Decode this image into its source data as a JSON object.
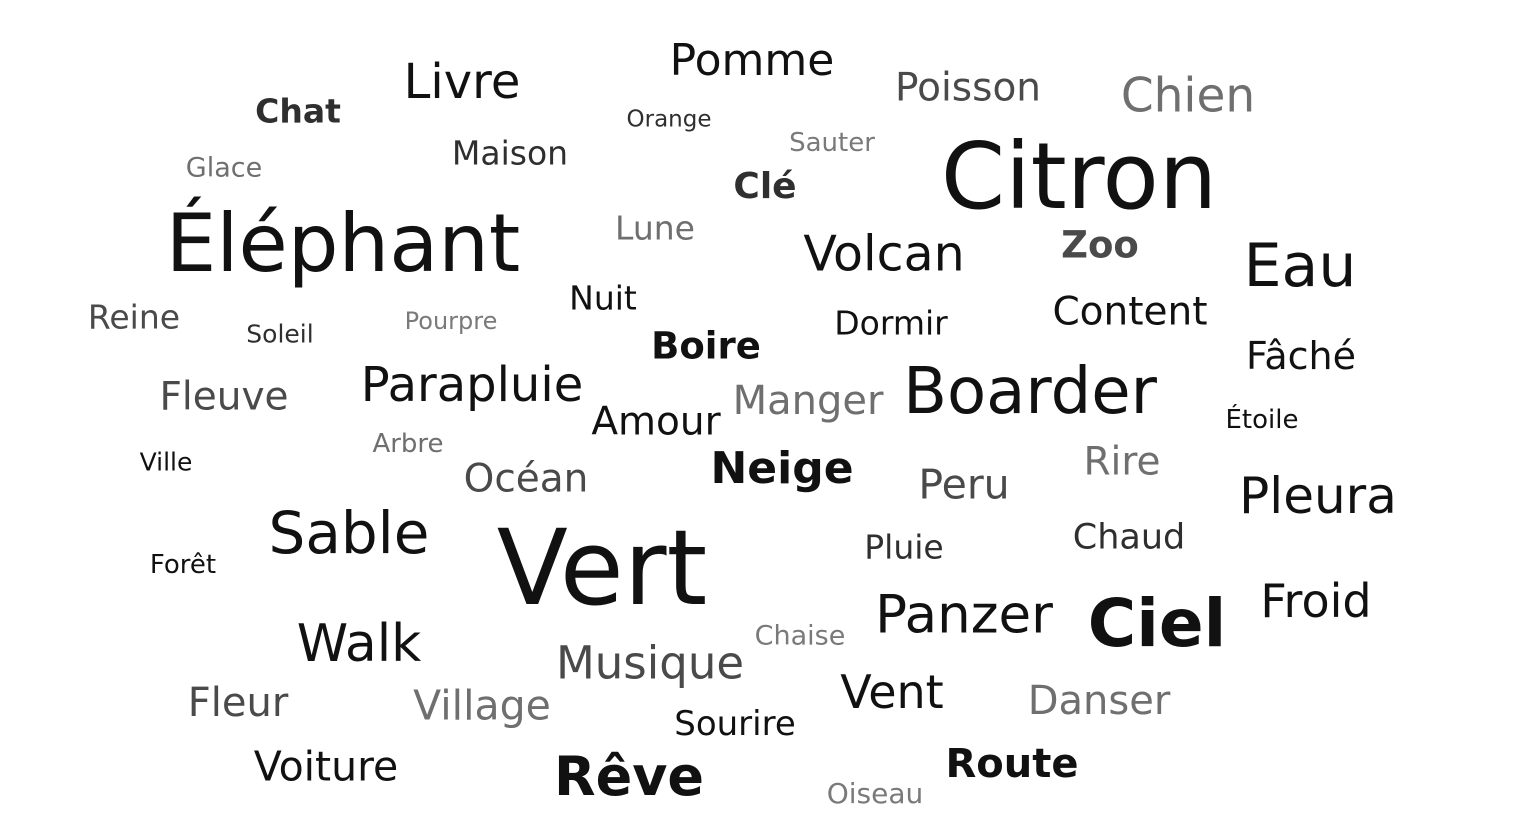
{
  "words": {
    "pomme": "Pomme",
    "livre": "Livre",
    "chat": "Chat",
    "orange": "Orange",
    "poisson": "Poisson",
    "chien": "Chien",
    "maison": "Maison",
    "sauter": "Sauter",
    "glace": "Glace",
    "cle": "Clé",
    "citron": "Citron",
    "elephant": "Éléphant",
    "lune": "Lune",
    "volcan": "Volcan",
    "zoo": "Zoo",
    "eau": "Eau",
    "nuit": "Nuit",
    "reine": "Reine",
    "soleil": "Soleil",
    "pourpre": "Pourpre",
    "dormir": "Dormir",
    "content": "Content",
    "boire": "Boire",
    "fache": "Fâché",
    "fleuve": "Fleuve",
    "parapluie": "Parapluie",
    "manger": "Manger",
    "boarder": "Boarder",
    "amour": "Amour",
    "etoile": "Étoile",
    "arbre": "Arbre",
    "ville": "Ville",
    "neige": "Neige",
    "rire": "Rire",
    "ocean": "Océan",
    "peru": "Peru",
    "pleura": "Pleura",
    "sable": "Sable",
    "vert": "Vert",
    "chaud": "Chaud",
    "pluie": "Pluie",
    "foret": "Forêt",
    "froid": "Froid",
    "panzer": "Panzer",
    "ciel": "Ciel",
    "chaise": "Chaise",
    "walk": "Walk",
    "musique": "Musique",
    "vent": "Vent",
    "fleur": "Fleur",
    "danser": "Danser",
    "village": "Village",
    "sourire": "Sourire",
    "voiture": "Voiture",
    "reve": "Rêve",
    "route": "Route",
    "oiseau": "Oiseau"
  }
}
